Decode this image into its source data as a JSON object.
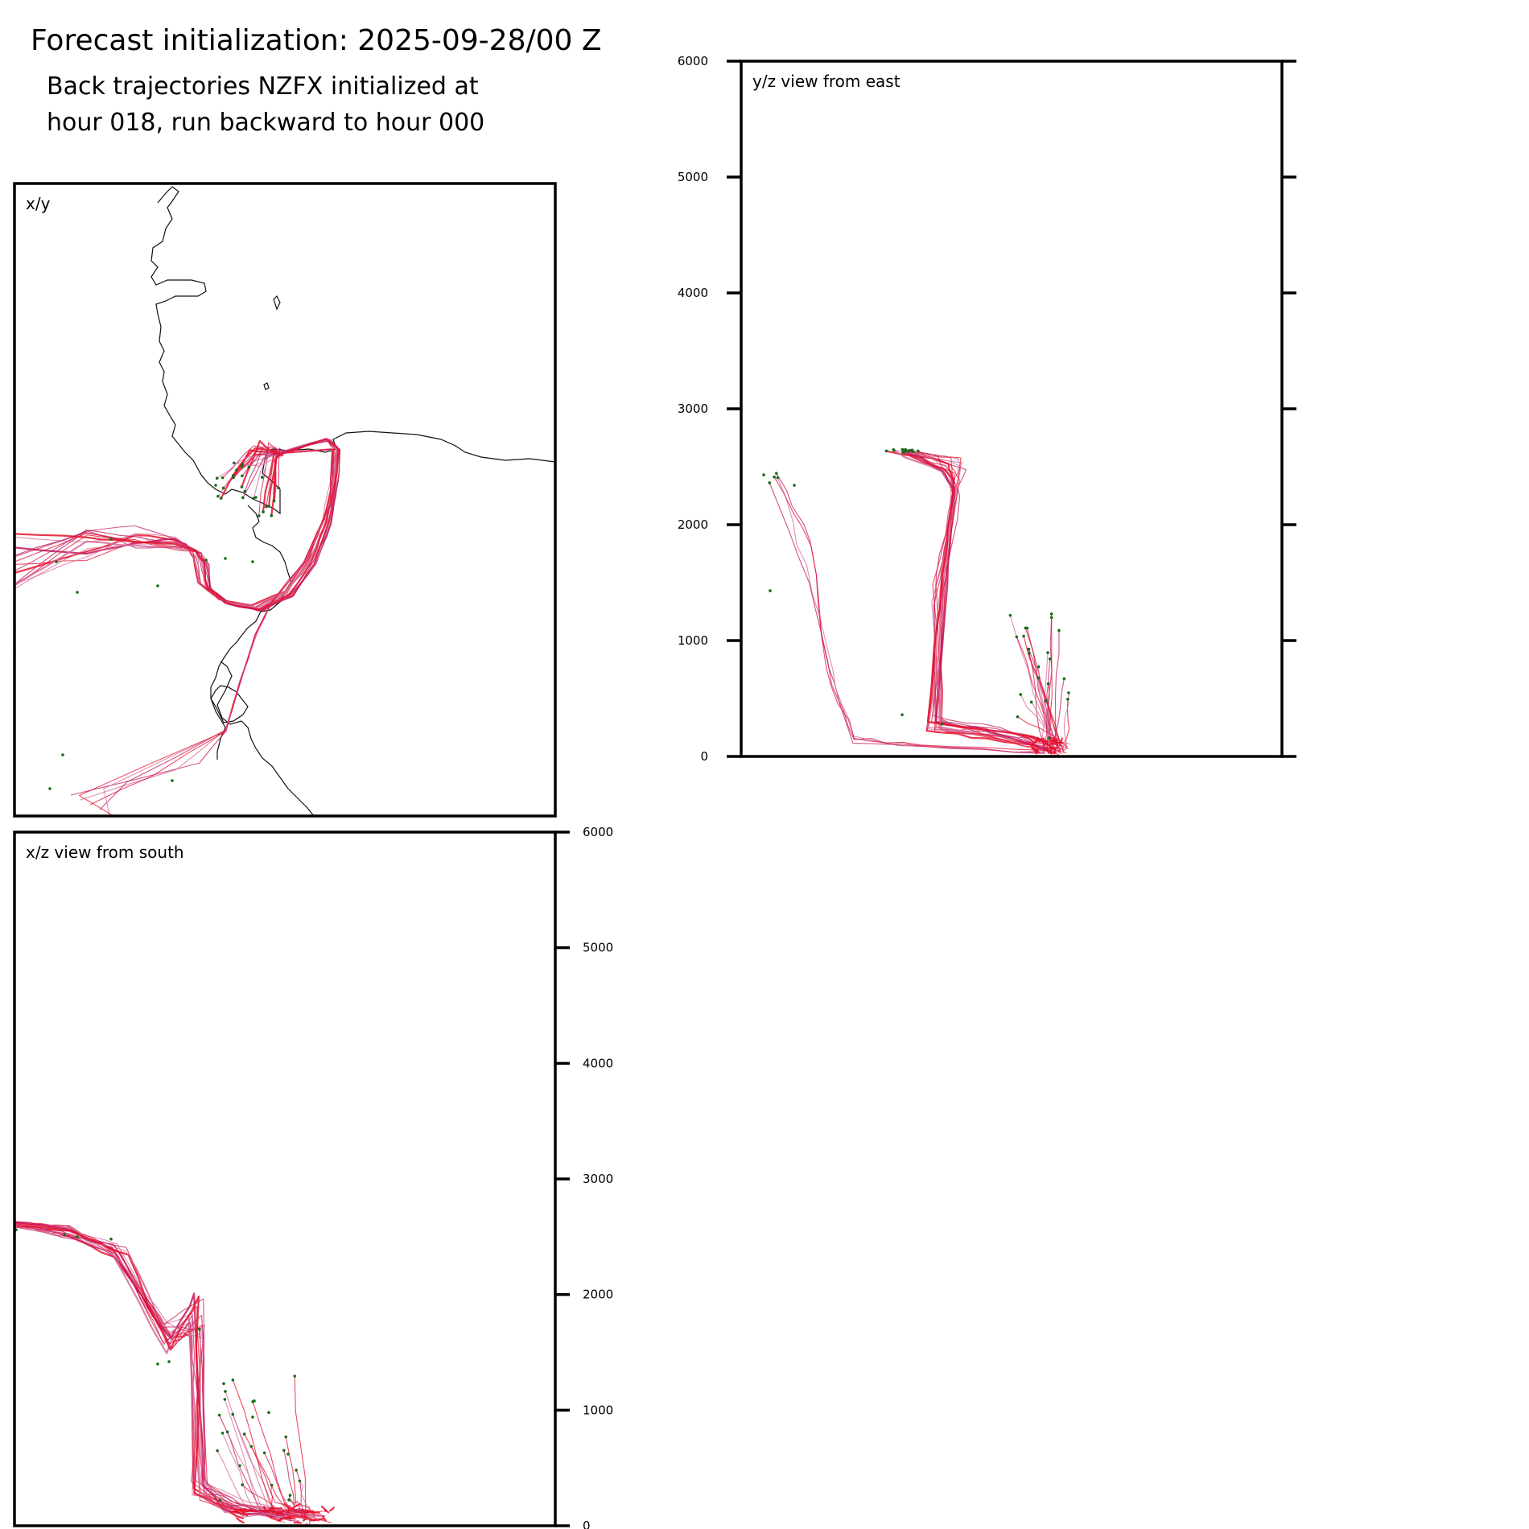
{
  "header": {
    "title": "Forecast initialization: 2025-09-28/00 Z",
    "subtitle_line1": "Back trajectories NZFX initialized at",
    "subtitle_line2": "hour 018, run backward to hour 000"
  },
  "colors": {
    "trajectory_primary": "#e8102c",
    "trajectory_secondary": "#c2185b",
    "trajectory_light": "#d66a9a",
    "endpoint_marker": "#1a6b1a",
    "coastline": "#111111"
  },
  "chart_data": [
    {
      "type": "line",
      "panel": "x/y",
      "title": "x/y",
      "description_units": "map view (relative horizontal position)",
      "axes_visible": false,
      "coastline": true,
      "series_count": 40
    },
    {
      "type": "line",
      "panel": "x/z",
      "title": "x/z view from south",
      "ylabel": "",
      "ylim": [
        0,
        6000
      ],
      "yticks": [
        0,
        1000,
        2000,
        3000,
        4000,
        5000,
        6000
      ],
      "ytick_labels": [
        "0",
        "1000",
        "2000",
        "3000",
        "4000",
        "5000",
        "6000"
      ],
      "ytick_side": "right",
      "start_altitude_range": [
        0,
        150
      ],
      "end_altitude_range": [
        0,
        2650
      ]
    },
    {
      "type": "line",
      "panel": "y/z",
      "title": "y/z view from east",
      "ylabel": "",
      "ylim": [
        0,
        6000
      ],
      "yticks": [
        0,
        1000,
        2000,
        3000,
        4000,
        5000,
        6000
      ],
      "ytick_labels": [
        "0",
        "1000",
        "2000",
        "3000",
        "4000",
        "5000",
        "6000"
      ],
      "ytick_side": "left",
      "start_altitude_range": [
        0,
        150
      ],
      "end_altitude_range": [
        0,
        2650
      ]
    }
  ]
}
